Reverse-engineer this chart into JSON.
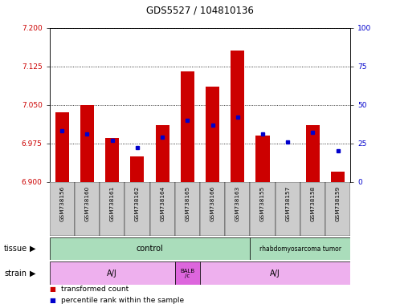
{
  "title": "GDS5527 / 104810136",
  "samples": [
    "GSM738156",
    "GSM738160",
    "GSM738161",
    "GSM738162",
    "GSM738164",
    "GSM738165",
    "GSM738166",
    "GSM738163",
    "GSM738155",
    "GSM738157",
    "GSM738158",
    "GSM738159"
  ],
  "red_values": [
    7.035,
    7.05,
    6.985,
    6.95,
    7.01,
    7.115,
    7.085,
    7.155,
    6.99,
    6.9,
    7.01,
    6.92
  ],
  "blue_pct": [
    33,
    31,
    27,
    22,
    29,
    40,
    37,
    42,
    31,
    26,
    32,
    20
  ],
  "y_min": 6.9,
  "y_max": 7.2,
  "y_ticks": [
    6.9,
    6.975,
    7.05,
    7.125,
    7.2
  ],
  "y_right_ticks": [
    0,
    25,
    50,
    75,
    100
  ],
  "bar_color": "#CC0000",
  "dot_color": "#0000CC",
  "dot_size": 18,
  "tick_color_left": "#CC0000",
  "tick_color_right": "#0000CC",
  "tissue_groups": [
    {
      "label": "control",
      "start": 0,
      "end": 8,
      "color": "#AAEEBB"
    },
    {
      "label": "rhabdomyosarcoma tumor",
      "start": 8,
      "end": 12,
      "color": "#AAEEBB"
    }
  ],
  "strain_groups": [
    {
      "label": "A/J",
      "start": 0,
      "end": 5,
      "color": "#F0A0E8"
    },
    {
      "label": "BALB\n/c",
      "start": 5,
      "end": 6,
      "color": "#CC44CC"
    },
    {
      "label": "A/J",
      "start": 6,
      "end": 12,
      "color": "#F0A0E8"
    }
  ]
}
